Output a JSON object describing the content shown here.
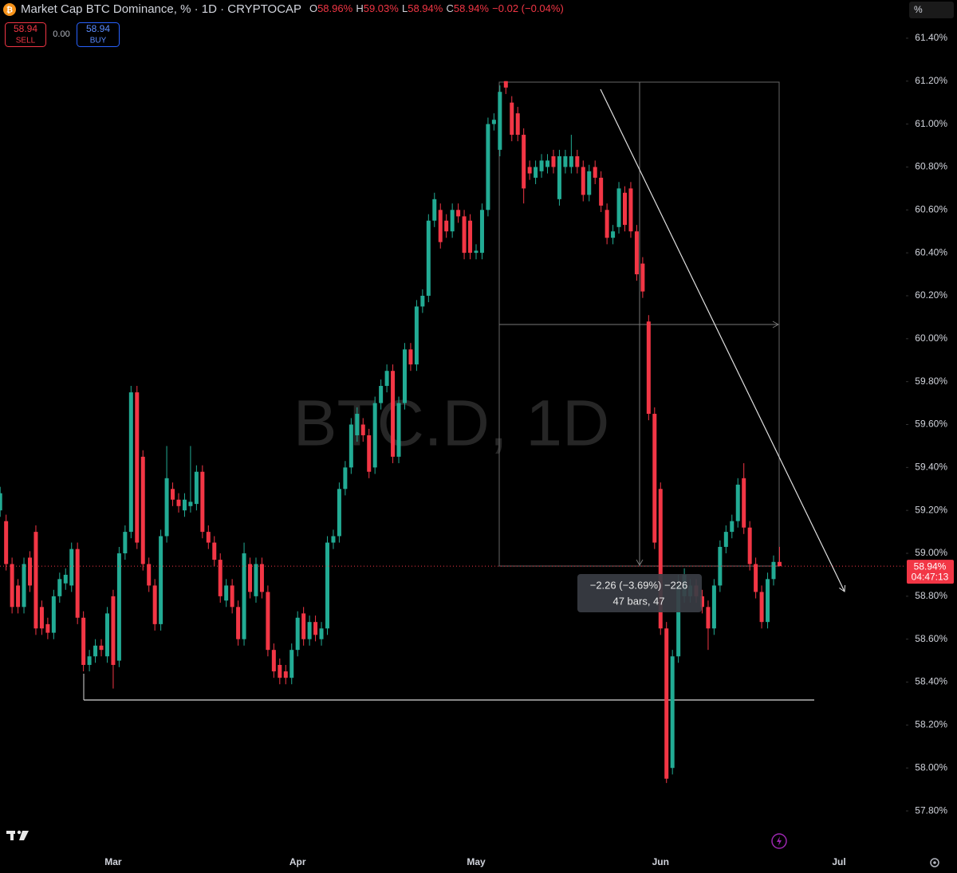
{
  "header": {
    "title": "Market Cap BTC Dominance, % · 1D · CRYPTOCAP",
    "o_label": "O",
    "o": "58.96%",
    "h_label": "H",
    "h": "59.03%",
    "l_label": "L",
    "l": "58.94%",
    "c_label": "C",
    "c": "58.94%",
    "change": "−0.02 (−0.04%)"
  },
  "trade": {
    "sell_price": "58.94",
    "sell": "SELL",
    "spread": "0.00",
    "buy_price": "58.94",
    "buy": "BUY"
  },
  "scale_unit": "%",
  "watermark": "BTC.D, 1D",
  "measure": {
    "change": "−2.26 (−3.69%) −226",
    "span": "47 bars, 47"
  },
  "price_tag": {
    "price": "58.94%",
    "countdown": "04:47:13"
  },
  "chart_data": {
    "type": "candlestick",
    "up_color": "#22ab94",
    "down_color": "#f23645",
    "ylim": [
      57.622,
      61.578
    ],
    "yticks": [
      {
        "value": 57.8,
        "label": "57.80%"
      },
      {
        "value": 58.0,
        "label": "58.00%"
      },
      {
        "value": 58.2,
        "label": "58.20%"
      },
      {
        "value": 58.4,
        "label": "58.40%"
      },
      {
        "value": 58.6,
        "label": "58.60%"
      },
      {
        "value": 58.8,
        "label": "58.80%"
      },
      {
        "value": 59.0,
        "label": "59.00%"
      },
      {
        "value": 59.2,
        "label": "59.20%"
      },
      {
        "value": 59.4,
        "label": "59.40%"
      },
      {
        "value": 59.6,
        "label": "59.60%"
      },
      {
        "value": 59.8,
        "label": "59.80%"
      },
      {
        "value": 60.0,
        "label": "60.00%"
      },
      {
        "value": 60.2,
        "label": "60.20%"
      },
      {
        "value": 60.4,
        "label": "60.40%"
      },
      {
        "value": 60.6,
        "label": "60.60%"
      },
      {
        "value": 60.8,
        "label": "60.80%"
      },
      {
        "value": 61.0,
        "label": "61.00%"
      },
      {
        "value": 61.2,
        "label": "61.20%"
      },
      {
        "value": 61.4,
        "label": "61.40%"
      }
    ],
    "categories": [
      null,
      null,
      null,
      null,
      null,
      null,
      null,
      null,
      null,
      null,
      null,
      null,
      null,
      null,
      null,
      null,
      null,
      null,
      null,
      "Mar",
      null,
      null,
      null,
      null,
      null,
      null,
      null,
      null,
      null,
      null,
      null,
      null,
      null,
      null,
      null,
      null,
      null,
      null,
      null,
      null,
      null,
      null,
      null,
      null,
      null,
      null,
      null,
      null,
      null,
      null,
      "Apr",
      null,
      null,
      null,
      null,
      null,
      null,
      null,
      null,
      null,
      null,
      null,
      null,
      null,
      null,
      null,
      null,
      null,
      null,
      null,
      null,
      null,
      null,
      null,
      null,
      null,
      null,
      null,
      null,
      null,
      "May",
      null,
      null,
      null,
      null,
      null,
      null,
      null,
      null,
      null,
      null,
      null,
      null,
      null,
      null,
      null,
      null,
      null,
      null,
      null,
      null,
      null,
      null,
      null,
      null,
      null,
      null,
      null,
      null,
      null,
      null,
      "Jun",
      null,
      null,
      null,
      null,
      null,
      null,
      null,
      null,
      null,
      null,
      null,
      null,
      null,
      null,
      null,
      null,
      null,
      null,
      null,
      null,
      null,
      null,
      null,
      null,
      null,
      null,
      null,
      null,
      null,
      "Jul"
    ],
    "open": [
      59.2,
      59.15,
      58.95,
      58.85,
      58.75,
      58.98,
      59.1,
      58.75,
      58.67,
      58.63,
      58.8,
      58.86,
      58.85,
      59.02,
      58.7,
      58.48,
      58.52,
      58.57,
      58.52,
      58.8,
      58.5,
      59.0,
      59.1,
      59.75,
      59.45,
      58.95,
      58.85,
      58.67,
      59.08,
      59.3,
      59.25,
      59.2,
      59.22,
      59.23,
      59.38,
      59.1,
      59.05,
      58.97,
      58.78,
      58.85,
      58.75,
      58.6,
      58.95,
      58.8,
      58.95,
      58.82,
      58.55,
      58.48,
      58.45,
      58.42,
      58.55,
      58.72,
      58.6,
      58.68,
      58.6,
      58.65,
      59.05,
      59.08,
      59.3,
      59.4,
      59.55,
      59.6,
      59.55,
      59.4,
      59.7,
      59.78,
      59.85,
      59.45,
      59.7,
      59.95,
      59.88,
      60.15,
      60.2,
      60.55,
      60.6,
      60.55,
      60.5,
      60.6,
      60.57,
      60.55,
      60.4,
      60.4,
      60.6,
      61.0,
      60.88,
      61.2,
      61.1,
      61.05,
      60.95,
      60.8,
      60.75,
      60.78,
      60.8,
      60.85,
      60.65,
      60.8,
      60.8,
      60.85,
      60.8,
      60.67,
      60.8,
      60.75,
      60.6,
      60.47,
      60.52,
      60.68,
      60.7,
      60.5,
      60.35,
      60.08,
      59.65,
      59.3,
      58.65,
      58.0,
      58.52,
      58.8,
      58.8,
      58.85,
      58.8,
      58.75,
      58.65,
      58.85,
      59.03,
      59.1,
      59.15,
      59.35,
      59.12,
      58.95,
      58.82,
      58.68,
      58.88,
      58.96,
      null,
      null,
      null,
      null,
      null,
      null,
      null,
      null,
      null,
      null
    ],
    "high": [
      59.31,
      59.18,
      58.98,
      58.88,
      58.98,
      59.01,
      59.13,
      58.78,
      58.7,
      58.83,
      58.91,
      58.93,
      59.05,
      59.05,
      58.73,
      58.55,
      58.6,
      58.6,
      58.75,
      58.83,
      59.03,
      59.13,
      59.78,
      59.78,
      59.48,
      58.98,
      58.88,
      59.11,
      59.5,
      59.33,
      59.28,
      59.28,
      59.5,
      59.41,
      59.41,
      59.13,
      59.08,
      59.0,
      58.88,
      58.88,
      58.78,
      59.05,
      58.98,
      58.98,
      58.98,
      58.85,
      58.58,
      58.51,
      58.48,
      58.58,
      58.73,
      58.75,
      58.71,
      58.71,
      58.68,
      59.08,
      59.11,
      59.33,
      59.43,
      59.63,
      59.68,
      59.63,
      59.58,
      59.73,
      59.81,
      59.88,
      59.88,
      59.73,
      59.98,
      59.98,
      60.18,
      60.23,
      60.58,
      60.68,
      60.63,
      60.58,
      60.63,
      60.63,
      60.6,
      60.58,
      60.44,
      60.63,
      61.03,
      61.05,
      61.18,
      61.2,
      61.13,
      61.08,
      60.98,
      60.83,
      60.83,
      60.86,
      60.86,
      60.88,
      60.88,
      60.88,
      60.95,
      60.88,
      60.83,
      60.81,
      60.83,
      60.78,
      60.63,
      60.53,
      60.73,
      60.71,
      60.73,
      60.53,
      60.38,
      60.11,
      59.68,
      59.33,
      58.68,
      58.55,
      58.9,
      58.93,
      58.88,
      58.88,
      58.83,
      58.78,
      58.88,
      59.06,
      59.13,
      59.18,
      59.35,
      59.42,
      59.15,
      58.98,
      58.85,
      58.91,
      58.99,
      59.03,
      null,
      null,
      null,
      null,
      null,
      null,
      null,
      null,
      null,
      null
    ],
    "low": [
      59.17,
      58.92,
      58.72,
      58.72,
      58.72,
      58.82,
      58.62,
      58.62,
      58.6,
      58.6,
      58.77,
      58.83,
      58.82,
      58.67,
      58.45,
      58.45,
      58.49,
      58.52,
      58.49,
      58.37,
      58.47,
      58.97,
      59.07,
      59.02,
      58.92,
      58.82,
      58.64,
      58.64,
      59.05,
      59.22,
      59.19,
      59.17,
      59.19,
      59.2,
      59.07,
      59.02,
      58.94,
      58.77,
      58.75,
      58.72,
      58.57,
      58.57,
      58.79,
      58.77,
      58.79,
      58.52,
      58.42,
      58.39,
      58.39,
      58.39,
      58.52,
      58.57,
      58.57,
      58.59,
      58.57,
      58.62,
      59.02,
      59.05,
      59.27,
      59.37,
      59.52,
      59.52,
      59.35,
      59.37,
      59.67,
      59.75,
      59.42,
      59.42,
      59.67,
      59.85,
      59.85,
      60.12,
      60.17,
      60.52,
      60.42,
      60.47,
      60.47,
      60.54,
      60.37,
      60.37,
      60.37,
      60.37,
      60.57,
      60.97,
      60.85,
      61.14,
      60.92,
      60.92,
      60.63,
      60.74,
      60.72,
      60.75,
      60.77,
      60.77,
      60.62,
      60.77,
      60.77,
      60.77,
      60.64,
      60.64,
      60.72,
      60.59,
      60.44,
      60.44,
      60.49,
      60.5,
      60.47,
      60.27,
      60.19,
      59.62,
      59.02,
      58.62,
      57.93,
      57.97,
      58.49,
      58.77,
      58.77,
      58.77,
      58.72,
      58.55,
      58.62,
      58.82,
      59.0,
      59.07,
      59.12,
      59.09,
      58.92,
      58.79,
      58.65,
      58.65,
      58.85,
      58.94,
      null,
      null,
      null,
      null,
      null,
      null,
      null,
      null,
      null,
      null
    ],
    "close": [
      59.28,
      58.95,
      58.75,
      58.75,
      58.95,
      58.85,
      58.65,
      58.65,
      58.63,
      58.8,
      58.88,
      58.9,
      59.02,
      58.7,
      58.48,
      58.52,
      58.57,
      58.55,
      58.72,
      58.48,
      59.0,
      59.1,
      59.75,
      59.05,
      58.95,
      58.85,
      58.67,
      59.08,
      59.35,
      59.25,
      59.22,
      59.25,
      59.24,
      59.38,
      59.1,
      59.05,
      58.97,
      58.8,
      58.85,
      58.75,
      58.6,
      59.0,
      58.82,
      58.95,
      58.82,
      58.55,
      58.45,
      58.42,
      58.42,
      58.55,
      58.7,
      58.6,
      58.68,
      58.62,
      58.65,
      59.05,
      59.08,
      59.3,
      59.4,
      59.6,
      59.65,
      59.55,
      59.38,
      59.7,
      59.78,
      59.85,
      59.45,
      59.7,
      59.95,
      59.88,
      60.15,
      60.2,
      60.55,
      60.65,
      60.45,
      60.5,
      60.6,
      60.57,
      60.4,
      60.4,
      60.41,
      60.6,
      61.0,
      61.02,
      61.15,
      61.17,
      60.95,
      60.95,
      60.7,
      60.77,
      60.8,
      60.83,
      60.83,
      60.8,
      60.85,
      60.85,
      60.85,
      60.8,
      60.67,
      60.78,
      60.75,
      60.62,
      60.47,
      60.5,
      60.7,
      60.53,
      60.5,
      60.3,
      60.22,
      59.65,
      59.05,
      58.65,
      57.95,
      58.52,
      58.85,
      58.9,
      58.85,
      58.8,
      58.75,
      58.65,
      58.85,
      59.03,
      59.1,
      59.15,
      59.32,
      59.12,
      58.95,
      58.82,
      58.68,
      58.88,
      58.96,
      58.94,
      null,
      null,
      null,
      null,
      null,
      null,
      null,
      null,
      null,
      null
    ]
  }
}
